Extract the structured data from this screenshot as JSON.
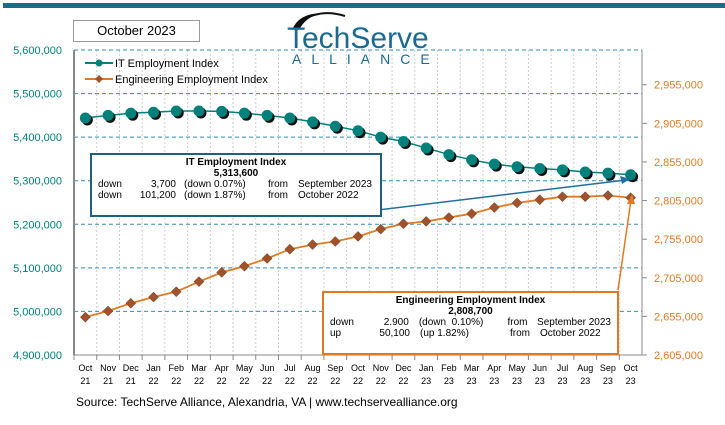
{
  "date_label": "October 2023",
  "logo": {
    "name": "TechServe",
    "sub": "ALLIANCE"
  },
  "source": "Source: TechServe Alliance, Alexandria, VA | www.techservealliance.org",
  "colors": {
    "it": "#00807a",
    "eng": "#e07b24",
    "topbar": "#1b6a92",
    "it_box": "#1f5f7f",
    "grid": "#2f8fbf"
  },
  "chart_data": {
    "type": "line",
    "categories": [
      [
        "Oct",
        "21"
      ],
      [
        "Nov",
        "21"
      ],
      [
        "Dec",
        "21"
      ],
      [
        "Jan",
        "22"
      ],
      [
        "Feb",
        "22"
      ],
      [
        "Mar",
        "22"
      ],
      [
        "Apr",
        "22"
      ],
      [
        "May",
        "22"
      ],
      [
        "Jun",
        "22"
      ],
      [
        "Jul",
        "22"
      ],
      [
        "Aug",
        "22"
      ],
      [
        "Sep",
        "22"
      ],
      [
        "Oct",
        "22"
      ],
      [
        "Nov",
        "22"
      ],
      [
        "Dec",
        "22"
      ],
      [
        "Jan",
        "23"
      ],
      [
        "Feb",
        "23"
      ],
      [
        "Mar",
        "23"
      ],
      [
        "Apr",
        "23"
      ],
      [
        "May",
        "23"
      ],
      [
        "Jun",
        "23"
      ],
      [
        "Jul",
        "23"
      ],
      [
        "Aug",
        "23"
      ],
      [
        "Sep",
        "23"
      ],
      [
        "Oct",
        "23"
      ]
    ],
    "left_axis": {
      "range": [
        4900000,
        5600000
      ],
      "ticks": [
        "4,900,000",
        "5,000,000",
        "5,100,000",
        "5,200,000",
        "5,300,000",
        "5,400,000",
        "5,500,000",
        "5,600,000"
      ],
      "tick_values": [
        4900000,
        5000000,
        5100000,
        5200000,
        5300000,
        5400000,
        5500000,
        5600000
      ]
    },
    "right_axis": {
      "range": [
        2605000,
        3000000
      ],
      "ticks": [
        "2,605,000",
        "2,655,000",
        "2,705,000",
        "2,755,000",
        "2,805,000",
        "2,855,000",
        "2,905,000",
        "2,955,000"
      ],
      "tick_values": [
        2605000,
        2655000,
        2705000,
        2755000,
        2805000,
        2855000,
        2905000,
        2955000
      ]
    },
    "grid": true,
    "legend_placement": "top-left",
    "series": [
      {
        "name": "IT Employment Index",
        "axis": "left",
        "marker": "circle",
        "values": [
          5444000,
          5450000,
          5455000,
          5457000,
          5460000,
          5460000,
          5459000,
          5455000,
          5450000,
          5444000,
          5435000,
          5425000,
          5414800,
          5400000,
          5390000,
          5375000,
          5360000,
          5348000,
          5338000,
          5332000,
          5328000,
          5325000,
          5320000,
          5317300,
          5313600
        ]
      },
      {
        "name": "Engineering Employment Index",
        "axis": "right",
        "marker": "diamond",
        "values": [
          2654000,
          2662000,
          2672000,
          2680000,
          2687000,
          2700000,
          2712000,
          2720000,
          2730000,
          2742000,
          2748000,
          2752000,
          2758600,
          2768000,
          2775000,
          2778000,
          2783000,
          2788000,
          2796000,
          2802000,
          2806000,
          2810000,
          2810000,
          2811600,
          2808700
        ]
      }
    ]
  },
  "it_box": {
    "title": "IT Employment Index",
    "value": "5,313,600",
    "rows": [
      [
        "down",
        "3,700",
        "(down 0.07%)",
        "from",
        "September 2023"
      ],
      [
        "down",
        "101,200",
        "(down 1.87%)",
        "from",
        "October 2022"
      ]
    ]
  },
  "eng_box": {
    "title": "Engineering Employment Index",
    "value": "2,808,700",
    "rows": [
      [
        "down",
        "2.900",
        "(down  0.10%)",
        "from",
        "September 2023"
      ],
      [
        "up",
        "50,100",
        "(up 1.82%)",
        "from",
        "October 2022"
      ]
    ]
  }
}
